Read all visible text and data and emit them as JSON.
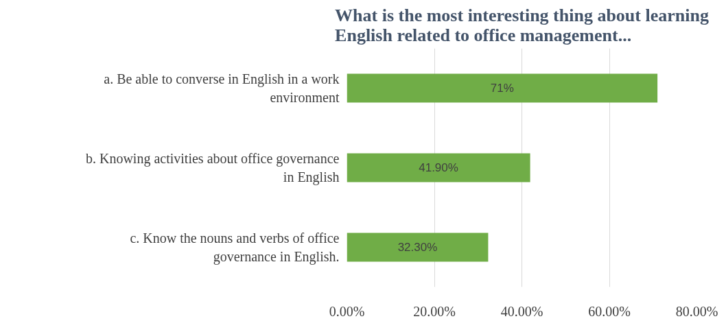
{
  "chart_data": {
    "type": "bar",
    "orientation": "horizontal",
    "title": "What is the most interesting thing about learning English related to office management...",
    "categories": [
      "a. Be able to converse in English in a work environment",
      "b. Knowing activities about office governance in English",
      "c. Know the nouns and verbs of office governance in English."
    ],
    "values": [
      71,
      41.9,
      32.3
    ],
    "value_labels": [
      "71%",
      "41.90%",
      "32.30%"
    ],
    "color": "#70ad47",
    "xlim": [
      0,
      80
    ],
    "xticks": [
      {
        "value": 0,
        "label": "0.00%"
      },
      {
        "value": 20,
        "label": "20.00%"
      },
      {
        "value": 40,
        "label": "40.00%"
      },
      {
        "value": 60,
        "label": "60.00%"
      },
      {
        "value": 80,
        "label": "80.00%"
      }
    ],
    "grid": "x",
    "legend": false
  }
}
